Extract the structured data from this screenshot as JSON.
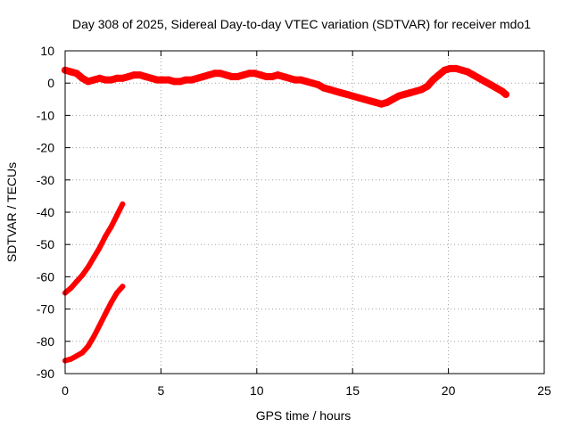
{
  "chart_data": {
    "type": "scatter",
    "title": "Day 308 of 2025, Sidereal Day-to-day VTEC variation (SDTVAR) for receiver mdo1",
    "xlabel": "GPS time / hours",
    "ylabel": "SDTVAR / TECUs",
    "xlim": [
      0,
      25
    ],
    "ylim": [
      -90,
      10
    ],
    "xticks": [
      0,
      5,
      10,
      15,
      20,
      25
    ],
    "yticks": [
      10,
      0,
      -10,
      -20,
      -30,
      -40,
      -50,
      -60,
      -70,
      -80,
      -90
    ],
    "grid": true,
    "series_color": "#ff0000",
    "series": [
      {
        "name": "main-band",
        "x": [
          0.0,
          0.3,
          0.6,
          0.9,
          1.2,
          1.5,
          1.8,
          2.1,
          2.4,
          2.7,
          3.0,
          3.3,
          3.6,
          3.9,
          4.2,
          4.5,
          4.8,
          5.1,
          5.4,
          5.7,
          6.0,
          6.3,
          6.6,
          6.9,
          7.2,
          7.5,
          7.8,
          8.1,
          8.4,
          8.7,
          9.0,
          9.3,
          9.6,
          9.9,
          10.2,
          10.5,
          10.8,
          11.1,
          11.4,
          11.7,
          12.0,
          12.3,
          12.6,
          12.9,
          13.2,
          13.5,
          13.8,
          14.1,
          14.4,
          14.7,
          15.0,
          15.3,
          15.6,
          15.9,
          16.2,
          16.5,
          16.8,
          17.1,
          17.4,
          17.7,
          18.0,
          18.3,
          18.6,
          18.9,
          19.2,
          19.5,
          19.8,
          20.1,
          20.4,
          20.7,
          21.0,
          21.3,
          21.6,
          21.9,
          22.2,
          22.5,
          22.8,
          23.0
        ],
        "y": [
          4,
          3.5,
          3,
          1.5,
          0.5,
          1,
          1.5,
          1,
          1,
          1.5,
          1.5,
          2,
          2.5,
          2.5,
          2,
          1.5,
          1,
          1,
          1,
          0.5,
          0.5,
          1,
          1,
          1.5,
          2,
          2.5,
          3,
          3,
          2.5,
          2,
          2,
          2.5,
          3,
          3,
          2.5,
          2,
          2,
          2.5,
          2,
          1.5,
          1,
          1,
          0.5,
          0,
          -0.5,
          -1.5,
          -2,
          -2.5,
          -3,
          -3.5,
          -4,
          -4.5,
          -5,
          -5.5,
          -6,
          -6.5,
          -6,
          -5,
          -4,
          -3.5,
          -3,
          -2.5,
          -2,
          -1,
          1,
          2.5,
          4,
          4.5,
          4.5,
          4,
          3.5,
          2.5,
          1.5,
          0.5,
          -0.5,
          -1.5,
          -2.5,
          -3.5
        ]
      },
      {
        "name": "upper-curve",
        "x": [
          0.0,
          0.3,
          0.6,
          0.9,
          1.2,
          1.5,
          1.8,
          2.1,
          2.4,
          2.7,
          3.0
        ],
        "y": [
          -65,
          -63.5,
          -61.5,
          -59.5,
          -57,
          -54,
          -51,
          -47.5,
          -44.5,
          -41,
          -37.5
        ]
      },
      {
        "name": "lower-curve",
        "x": [
          0.0,
          0.3,
          0.6,
          0.9,
          1.2,
          1.5,
          1.8,
          2.1,
          2.4,
          2.7,
          3.0
        ],
        "y": [
          -86,
          -85.5,
          -84.5,
          -83.5,
          -81.5,
          -78.5,
          -75,
          -71.5,
          -68,
          -65,
          -63
        ]
      }
    ]
  }
}
